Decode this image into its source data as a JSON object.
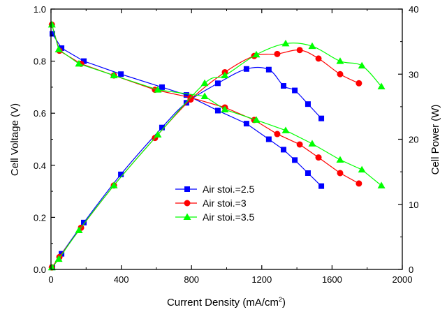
{
  "chart_data": {
    "type": "line",
    "xlabel": "Current Density (mA/cm",
    "xlabel_sup": "2",
    "xlabel_end": ")",
    "ylabel": "Cell Voltage (V)",
    "y2label": "Cell Power (W)",
    "xlim": [
      0,
      2000
    ],
    "ylim": [
      0,
      1.0
    ],
    "y2lim": [
      0,
      40
    ],
    "xticks": [
      0,
      400,
      800,
      1200,
      1600,
      2000
    ],
    "xtick_labels": [
      "0",
      "400",
      "800",
      "1200",
      "1600",
      "2000"
    ],
    "yticks": [
      0,
      0.2,
      0.4,
      0.6,
      0.8,
      1.0
    ],
    "ytick_labels": [
      "0.0",
      "0.2",
      "0.4",
      "0.6",
      "0.8",
      "1.0"
    ],
    "y2ticks": [
      0,
      10,
      20,
      30,
      40
    ],
    "y2tick_labels": [
      "0",
      "10",
      "20",
      "30",
      "40"
    ],
    "grid": false,
    "legend_placement": "center",
    "series": [
      {
        "name": "Air stoi.=2.5",
        "color": "#0000ff",
        "marker": "square",
        "x": [
          8,
          60,
          187,
          398,
          632,
          771,
          950,
          1113,
          1240,
          1324,
          1388,
          1463,
          1539
        ],
        "voltage": [
          0.905,
          0.85,
          0.8,
          0.75,
          0.7,
          0.67,
          0.61,
          0.56,
          0.5,
          0.46,
          0.42,
          0.37,
          0.32
        ],
        "power": [
          0.3,
          2.4,
          7.2,
          14.6,
          21.8,
          25.6,
          28.6,
          30.8,
          30.7,
          28.2,
          27.5,
          25.4,
          23.2
        ]
      },
      {
        "name": "Air stoi.=3",
        "color": "#ff0000",
        "marker": "circle",
        "x": [
          5,
          48,
          171,
          358,
          592,
          795,
          990,
          1157,
          1288,
          1416,
          1523,
          1646,
          1753
        ],
        "voltage": [
          0.94,
          0.84,
          0.79,
          0.745,
          0.69,
          0.66,
          0.622,
          0.574,
          0.52,
          0.48,
          0.43,
          0.37,
          0.33
        ],
        "power": [
          0.3,
          1.9,
          6.4,
          12.9,
          20.2,
          26.1,
          30.3,
          32.8,
          33.1,
          33.7,
          32.4,
          30.0,
          28.6
        ]
      },
      {
        "name": "Air stoi.=3.5",
        "color": "#00ff00",
        "marker": "triangle",
        "x": [
          5,
          44,
          159,
          358,
          608,
          875,
          990,
          1169,
          1336,
          1487,
          1646,
          1770,
          1881
        ],
        "voltage": [
          0.94,
          0.845,
          0.79,
          0.745,
          0.69,
          0.665,
          0.614,
          0.574,
          0.534,
          0.483,
          0.421,
          0.383,
          0.322
        ],
        "power": [
          0.3,
          1.6,
          6.0,
          12.9,
          20.7,
          28.6,
          29.8,
          33.0,
          34.7,
          34.3,
          32.0,
          31.3,
          28.1
        ]
      }
    ]
  }
}
